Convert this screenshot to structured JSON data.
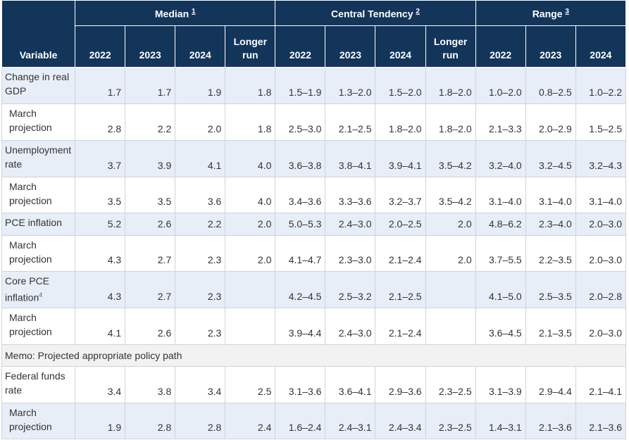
{
  "header": {
    "variable": "Variable",
    "groups": [
      {
        "label": "Median",
        "note": "1",
        "span": 4
      },
      {
        "label": "Central Tendency",
        "note": "2",
        "span": 4
      },
      {
        "label": "Range",
        "note": "3",
        "span": 3
      }
    ],
    "columns": [
      "2022",
      "2023",
      "2024",
      "Longer run",
      "2022",
      "2023",
      "2024",
      "Longer run",
      "2022",
      "2023",
      "2024"
    ]
  },
  "rows": [
    {
      "label": "Change in real GDP",
      "values": [
        "1.7",
        "1.7",
        "1.9",
        "1.8",
        "1.5–1.9",
        "1.3–2.0",
        "1.5–2.0",
        "1.8–2.0",
        "1.0–2.0",
        "0.8–2.5",
        "1.0–2.2"
      ]
    },
    {
      "label": "March projection",
      "sub": true,
      "values": [
        "2.8",
        "2.2",
        "2.0",
        "1.8",
        "2.5–3.0",
        "2.1–2.5",
        "1.8–2.0",
        "1.8–2.0",
        "2.1–3.3",
        "2.0–2.9",
        "1.5–2.5"
      ]
    },
    {
      "label": "Unemployment rate",
      "values": [
        "3.7",
        "3.9",
        "4.1",
        "4.0",
        "3.6–3.8",
        "3.8–4.1",
        "3.9–4.1",
        "3.5–4.2",
        "3.2–4.0",
        "3.2–4.5",
        "3.2–4.3"
      ]
    },
    {
      "label": "March projection",
      "sub": true,
      "values": [
        "3.5",
        "3.5",
        "3.6",
        "4.0",
        "3.4–3.6",
        "3.3–3.6",
        "3.2–3.7",
        "3.5–4.2",
        "3.1–4.0",
        "3.1–4.0",
        "3.1–4.0"
      ]
    },
    {
      "label": "PCE inflation",
      "values": [
        "5.2",
        "2.6",
        "2.2",
        "2.0",
        "5.0–5.3",
        "2.4–3.0",
        "2.0–2.5",
        "2.0",
        "4.8–6.2",
        "2.3–4.0",
        "2.0–3.0"
      ]
    },
    {
      "label": "March projection",
      "sub": true,
      "values": [
        "4.3",
        "2.7",
        "2.3",
        "2.0",
        "4.1–4.7",
        "2.3–3.0",
        "2.1–2.4",
        "2.0",
        "3.7–5.5",
        "2.2–3.5",
        "2.0–3.0"
      ]
    },
    {
      "label": "Core PCE inflation",
      "note": "4",
      "values": [
        "4.3",
        "2.7",
        "2.3",
        null,
        "4.2–4.5",
        "2.5–3.2",
        "2.1–2.5",
        null,
        "4.1–5.0",
        "2.5–3.5",
        "2.0–2.8"
      ]
    },
    {
      "label": "March projection",
      "sub": true,
      "values": [
        "4.1",
        "2.6",
        "2.3",
        null,
        "3.9–4.4",
        "2.4–3.0",
        "2.1–2.4",
        null,
        "3.6–4.5",
        "2.1–3.5",
        "2.0–3.0"
      ]
    },
    {
      "memo": "Memo: Projected appropriate policy path"
    },
    {
      "label": "Federal funds rate",
      "values": [
        "3.4",
        "3.8",
        "3.4",
        "2.5",
        "3.1–3.6",
        "3.6–4.1",
        "2.9–3.6",
        "2.3–2.5",
        "3.1–3.9",
        "2.9–4.4",
        "2.1–4.1"
      ]
    },
    {
      "label": "March projection",
      "sub": true,
      "values": [
        "1.9",
        "2.8",
        "2.8",
        "2.4",
        "1.6–2.4",
        "2.4–3.1",
        "2.4–3.4",
        "2.3–2.5",
        "1.4–3.1",
        "2.1–3.6",
        "2.1–3.6"
      ]
    }
  ]
}
